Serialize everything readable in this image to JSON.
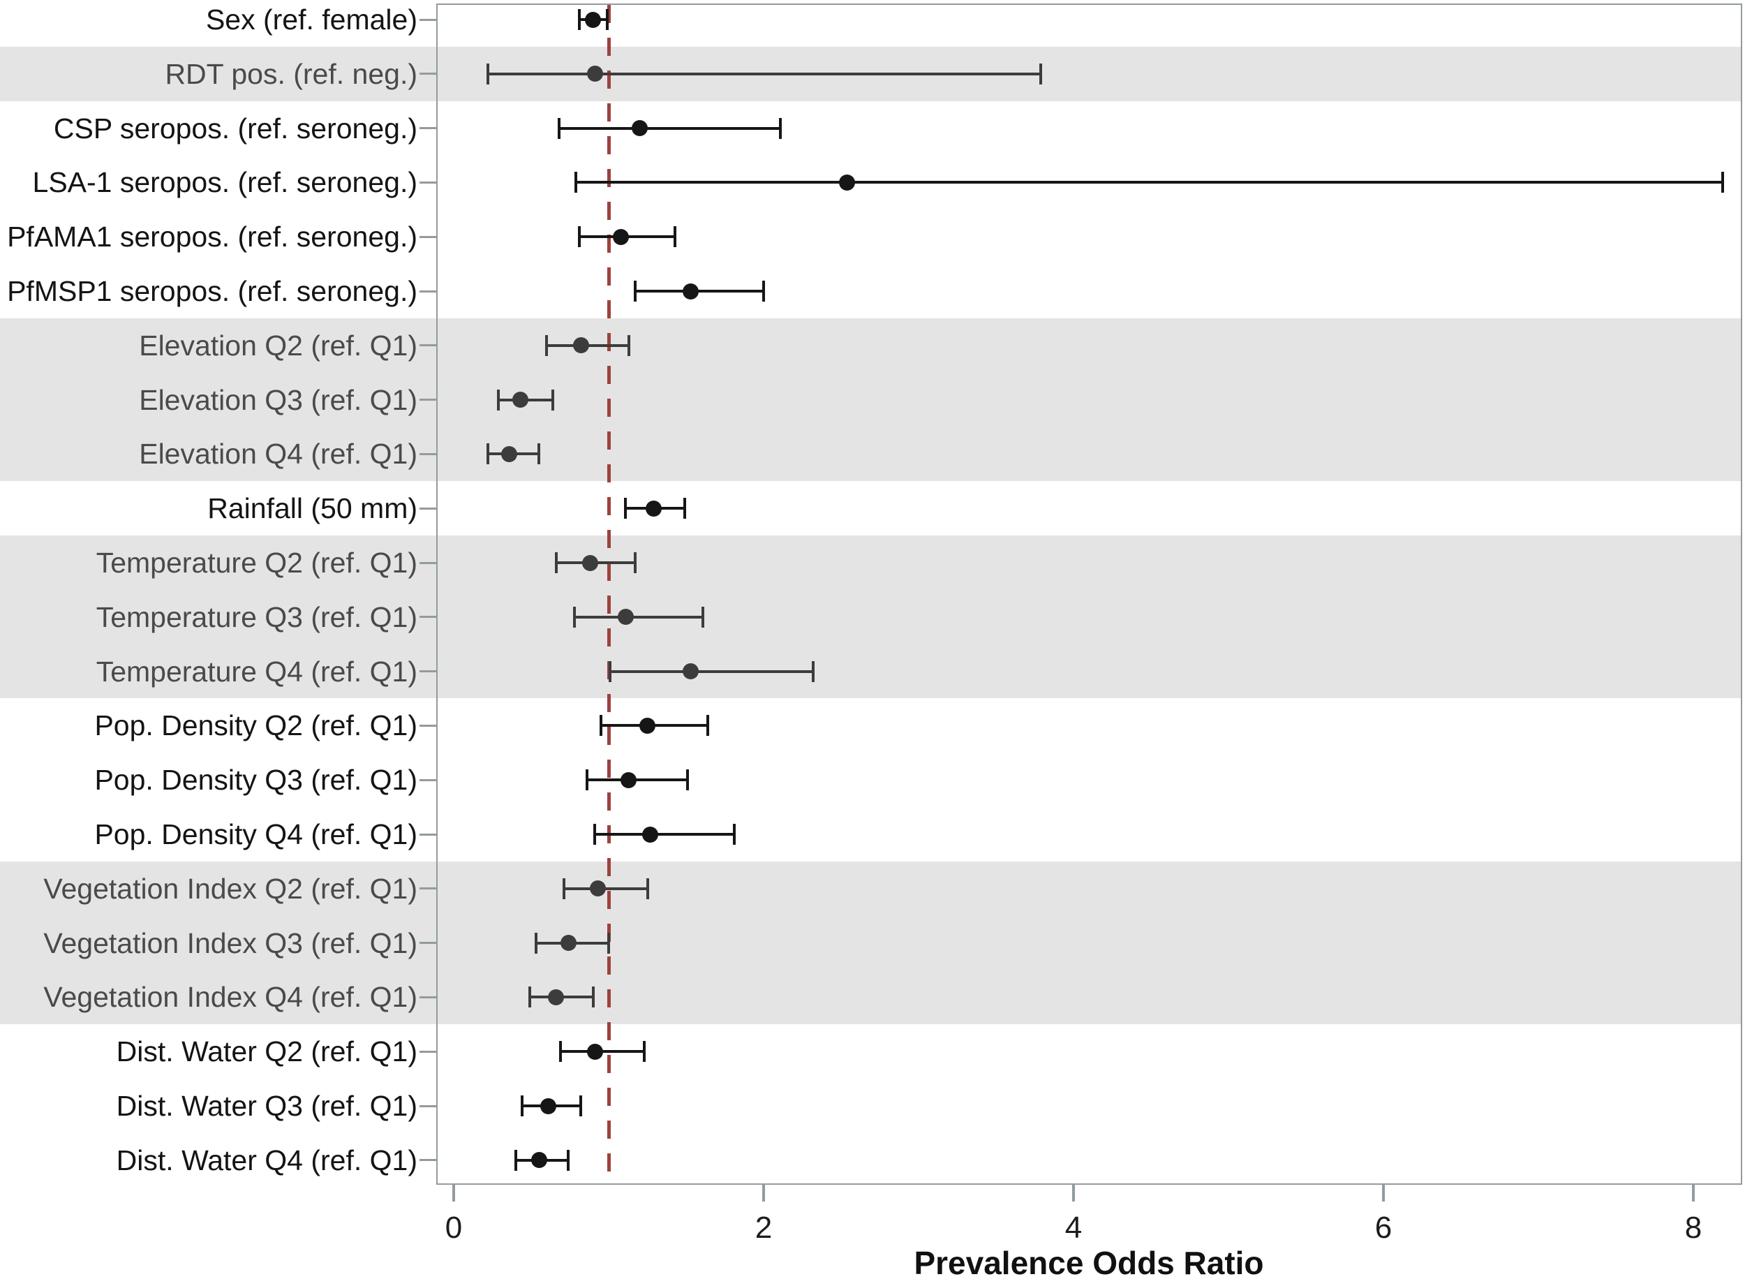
{
  "chart_data": {
    "type": "scatter",
    "variant": "forest-plot-with-error-bars",
    "title": "",
    "xlabel": "Prevalence Odds Ratio",
    "ylabel": "",
    "xlim": [
      -0.11,
      8.32
    ],
    "x_ticks": [
      0,
      2,
      4,
      6,
      8
    ],
    "reference_line_x": 1,
    "grid": false,
    "legend": "none",
    "rows": [
      {
        "label": "Sex (ref. female)",
        "estimate": 0.9,
        "ci_low": 0.81,
        "ci_high": 0.99,
        "shaded": false
      },
      {
        "label": "RDT pos. (ref. neg.)",
        "estimate": 0.91,
        "ci_low": 0.22,
        "ci_high": 3.79,
        "shaded": true
      },
      {
        "label": "CSP seropos. (ref. seroneg.)",
        "estimate": 1.2,
        "ci_low": 0.68,
        "ci_high": 2.11,
        "shaded": false
      },
      {
        "label": "LSA-1 seropos. (ref. seroneg.)",
        "estimate": 2.54,
        "ci_low": 0.79,
        "ci_high": 8.19,
        "shaded": false
      },
      {
        "label": "PfAMA1 seropos. (ref. seroneg.)",
        "estimate": 1.08,
        "ci_low": 0.81,
        "ci_high": 1.43,
        "shaded": false
      },
      {
        "label": "PfMSP1 seropos. (ref. seroneg.)",
        "estimate": 1.53,
        "ci_low": 1.17,
        "ci_high": 2.0,
        "shaded": false
      },
      {
        "label": "Elevation Q2 (ref. Q1)",
        "estimate": 0.82,
        "ci_low": 0.6,
        "ci_high": 1.13,
        "shaded": true
      },
      {
        "label": "Elevation Q3 (ref. Q1)",
        "estimate": 0.43,
        "ci_low": 0.29,
        "ci_high": 0.64,
        "shaded": true
      },
      {
        "label": "Elevation Q4 (ref. Q1)",
        "estimate": 0.36,
        "ci_low": 0.22,
        "ci_high": 0.55,
        "shaded": true
      },
      {
        "label": "Rainfall (50 mm)",
        "estimate": 1.29,
        "ci_low": 1.11,
        "ci_high": 1.49,
        "shaded": false
      },
      {
        "label": "Temperature Q2 (ref. Q1)",
        "estimate": 0.88,
        "ci_low": 0.66,
        "ci_high": 1.17,
        "shaded": true
      },
      {
        "label": "Temperature Q3 (ref. Q1)",
        "estimate": 1.11,
        "ci_low": 0.78,
        "ci_high": 1.61,
        "shaded": true
      },
      {
        "label": "Temperature Q4 (ref. Q1)",
        "estimate": 1.53,
        "ci_low": 1.01,
        "ci_high": 2.32,
        "shaded": true
      },
      {
        "label": "Pop. Density Q2 (ref. Q1)",
        "estimate": 1.25,
        "ci_low": 0.95,
        "ci_high": 1.64,
        "shaded": false
      },
      {
        "label": "Pop. Density Q3 (ref. Q1)",
        "estimate": 1.13,
        "ci_low": 0.86,
        "ci_high": 1.51,
        "shaded": false
      },
      {
        "label": "Pop. Density Q4 (ref. Q1)",
        "estimate": 1.27,
        "ci_low": 0.91,
        "ci_high": 1.81,
        "shaded": false
      },
      {
        "label": "Vegetation Index Q2 (ref. Q1)",
        "estimate": 0.93,
        "ci_low": 0.71,
        "ci_high": 1.25,
        "shaded": true
      },
      {
        "label": "Vegetation Index Q3 (ref. Q1)",
        "estimate": 0.74,
        "ci_low": 0.53,
        "ci_high": 1.0,
        "shaded": true
      },
      {
        "label": "Vegetation Index Q4 (ref. Q1)",
        "estimate": 0.66,
        "ci_low": 0.49,
        "ci_high": 0.9,
        "shaded": true
      },
      {
        "label": "Dist. Water Q2 (ref. Q1)",
        "estimate": 0.91,
        "ci_low": 0.69,
        "ci_high": 1.23,
        "shaded": false
      },
      {
        "label": "Dist. Water Q3 (ref. Q1)",
        "estimate": 0.61,
        "ci_low": 0.44,
        "ci_high": 0.82,
        "shaded": false
      },
      {
        "label": "Dist. Water Q4 (ref. Q1)",
        "estimate": 0.55,
        "ci_low": 0.4,
        "ci_high": 0.74,
        "shaded": false
      }
    ],
    "colors": {
      "band_fill": "#e4e4e4",
      "reference_line": "#9d423d",
      "marker_plain": "#161616",
      "marker_shaded": "#3c3c3c",
      "axis_line": "#939b9f",
      "label_plain": "#141414",
      "label_shaded": "#4a4a4a"
    }
  }
}
